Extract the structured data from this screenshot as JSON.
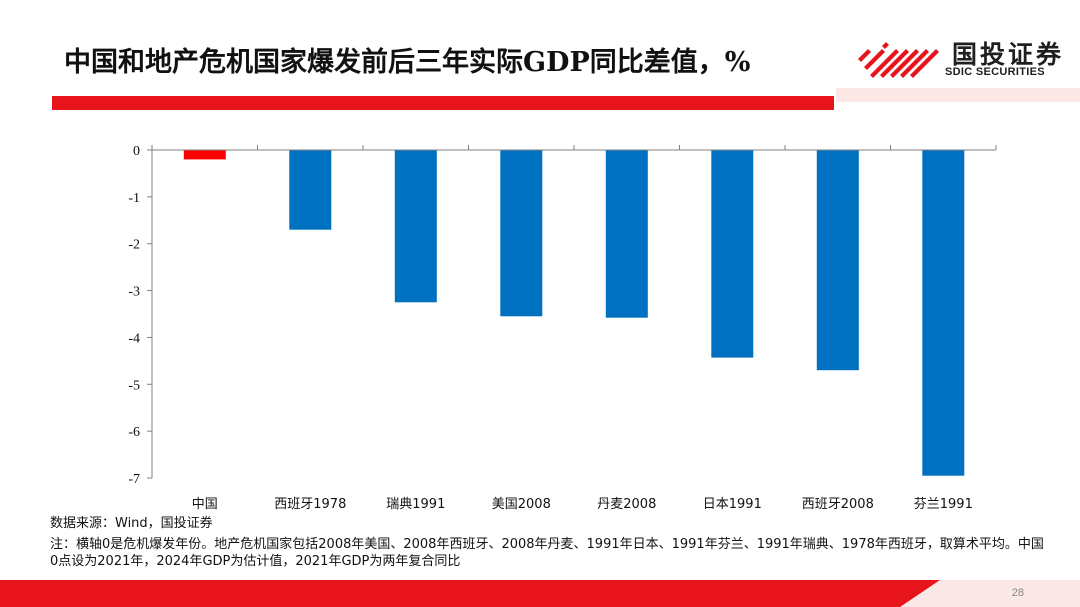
{
  "slide": {
    "title": "中国和地产危机国家爆发前后三年实际GDP同比差值，%",
    "page_number": "28"
  },
  "logo": {
    "name_cn": "国投证券",
    "name_en": "SDIC SECURITIES",
    "colors": {
      "stripes": "#e8141c",
      "text": "#1f1f1f"
    }
  },
  "footer": {
    "source": "数据来源：Wind，国投证券",
    "note": "注：横轴0是危机爆发年份。地产危机国家包括2008年美国、2008年西班牙、2008年丹麦、1991年日本、1991年芬兰、1991年瑞典、1978年西班牙，取算术平均。中国0点设为2021年，2024年GDP为估计值，2021年GDP为两年复合同比"
  },
  "colors": {
    "accent_red": "#e8141c",
    "bar_blue": "#0070c0",
    "bar_red": "#ff0000",
    "light_pink": "#fbe7e6"
  },
  "chart_data": {
    "type": "bar",
    "title": "",
    "xlabel": "",
    "ylabel": "",
    "categories": [
      "中国",
      "西班牙1978",
      "瑞典1991",
      "美国2008",
      "丹麦2008",
      "日本1991",
      "西班牙2008",
      "芬兰1991"
    ],
    "values": [
      -0.2,
      -1.7,
      -3.25,
      -3.55,
      -3.58,
      -4.43,
      -4.7,
      -6.95
    ],
    "bar_colors": [
      "#ff0000",
      "#0070c0",
      "#0070c0",
      "#0070c0",
      "#0070c0",
      "#0070c0",
      "#0070c0",
      "#0070c0"
    ],
    "ylim": [
      -7,
      0
    ],
    "yticks": [
      0,
      -1,
      -2,
      -3,
      -4,
      -5,
      -6,
      -7
    ],
    "grid": false,
    "legend": "none"
  }
}
